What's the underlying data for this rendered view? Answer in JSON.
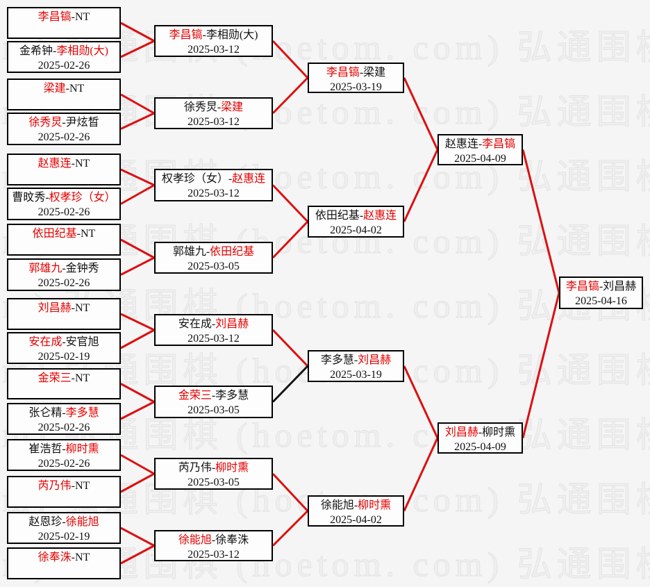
{
  "watermark": {
    "text": "弘通围棋 (hoetom. com)",
    "color": "#e7e7e7"
  },
  "colors": {
    "winner_text": "#e60000",
    "line_red": "#dd0f0f",
    "line_black": "#141414",
    "box_border": "#000000",
    "background": "#f5f5f5"
  },
  "bracket": {
    "separator": "-",
    "rounds": [
      {
        "name": "round-1",
        "boxes": [
          {
            "id": "b1",
            "p1": "李昌镐",
            "p2": "NT",
            "winner": 1,
            "date": ""
          },
          {
            "id": "b2",
            "p1": "金希钟",
            "p2": "李相勋(大)",
            "winner": 2,
            "date": "2025-02-26"
          },
          {
            "id": "b3",
            "p1": "梁建",
            "p2": "NT",
            "winner": 1,
            "date": ""
          },
          {
            "id": "b4",
            "p1": "徐秀炅",
            "p2": "尹炫晳",
            "winner": 1,
            "date": "2025-02-26"
          },
          {
            "id": "b5",
            "p1": "赵惠连",
            "p2": "NT",
            "winner": 1,
            "date": ""
          },
          {
            "id": "b6",
            "p1": "曹旼秀",
            "p2": "权孝珍（女）",
            "winner": 2,
            "date": "2025-02-26"
          },
          {
            "id": "b7",
            "p1": "依田纪基",
            "p2": "NT",
            "winner": 1,
            "date": ""
          },
          {
            "id": "b8",
            "p1": "郭雄九",
            "p2": "金钟秀",
            "winner": 1,
            "date": "2025-02-26"
          },
          {
            "id": "b9",
            "p1": "刘昌赫",
            "p2": "NT",
            "winner": 1,
            "date": ""
          },
          {
            "id": "b10",
            "p1": "安在成",
            "p2": "安官旭",
            "winner": 1,
            "date": "2025-02-19"
          },
          {
            "id": "b11",
            "p1": "金荣三",
            "p2": "NT",
            "winner": 1,
            "date": ""
          },
          {
            "id": "b12",
            "p1": "张仑精",
            "p2": "李多慧",
            "winner": 2,
            "date": "2025-02-26"
          },
          {
            "id": "b13",
            "p1": "崔浩哲",
            "p2": "柳时熏",
            "winner": 2,
            "date": "2025-02-26"
          },
          {
            "id": "b14",
            "p1": "芮乃伟",
            "p2": "NT",
            "winner": 1,
            "date": ""
          },
          {
            "id": "b15",
            "p1": "赵恩珍",
            "p2": "徐能旭",
            "winner": 2,
            "date": "2025-02-19"
          },
          {
            "id": "b16",
            "p1": "徐奉洙",
            "p2": "NT",
            "winner": 1,
            "date": ""
          }
        ]
      },
      {
        "name": "round-2",
        "boxes": [
          {
            "id": "r2b1",
            "p1": "李昌镐",
            "p2": "李相勋(大)",
            "winner": 1,
            "date": "2025-03-12"
          },
          {
            "id": "r2b2",
            "p1": "徐秀炅",
            "p2": "梁建",
            "winner": 2,
            "date": "2025-03-12"
          },
          {
            "id": "r2b3",
            "p1": "权孝珍（女）",
            "p2": "赵惠连",
            "winner": 2,
            "date": "2025-03-12"
          },
          {
            "id": "r2b4",
            "p1": "郭雄九",
            "p2": "依田纪基",
            "winner": 2,
            "date": "2025-03-05"
          },
          {
            "id": "r2b5",
            "p1": "安在成",
            "p2": "刘昌赫",
            "winner": 2,
            "date": "2025-03-12"
          },
          {
            "id": "r2b6",
            "p1": "金荣三",
            "p2": "李多慧",
            "winner": 1,
            "date": "2025-03-05"
          },
          {
            "id": "r2b7",
            "p1": "芮乃伟",
            "p2": "柳时熏",
            "winner": 2,
            "date": "2025-03-05"
          },
          {
            "id": "r2b8",
            "p1": "徐能旭",
            "p2": "徐奉洙",
            "winner": 1,
            "date": "2025-03-12"
          }
        ]
      },
      {
        "name": "round-3",
        "boxes": [
          {
            "id": "r3b1",
            "p1": "李昌镐",
            "p2": "梁建",
            "winner": 1,
            "date": "2025-03-19"
          },
          {
            "id": "r3b2",
            "p1": "依田纪基",
            "p2": "赵惠连",
            "winner": 2,
            "date": "2025-04-02"
          },
          {
            "id": "r3b3",
            "p1": "李多慧",
            "p2": "刘昌赫",
            "winner": 2,
            "date": "2025-03-19"
          },
          {
            "id": "r3b4",
            "p1": "徐能旭",
            "p2": "柳时熏",
            "winner": 2,
            "date": "2025-04-02"
          }
        ]
      },
      {
        "name": "semifinal",
        "boxes": [
          {
            "id": "r4b1",
            "p1": "赵惠连",
            "p2": "李昌镐",
            "winner": 2,
            "date": "2025-04-09"
          },
          {
            "id": "r4b2",
            "p1": "刘昌赫",
            "p2": "柳时熏",
            "winner": 1,
            "date": "2025-04-09"
          }
        ]
      },
      {
        "name": "final",
        "boxes": [
          {
            "id": "f1",
            "p1": "李昌镐",
            "p2": "刘昌赫",
            "winner": 1,
            "date": "2025-04-16"
          }
        ]
      }
    ]
  },
  "connections": [
    {
      "from": "b1",
      "to": "r2b1",
      "color": "red"
    },
    {
      "from": "b2",
      "to": "r2b1",
      "color": "red"
    },
    {
      "from": "b3",
      "to": "r2b2",
      "color": "red"
    },
    {
      "from": "b4",
      "to": "r2b2",
      "color": "red"
    },
    {
      "from": "b5",
      "to": "r2b3",
      "color": "red"
    },
    {
      "from": "b6",
      "to": "r2b3",
      "color": "red"
    },
    {
      "from": "b7",
      "to": "r2b4",
      "color": "red"
    },
    {
      "from": "b8",
      "to": "r2b4",
      "color": "red"
    },
    {
      "from": "b9",
      "to": "r2b5",
      "color": "red"
    },
    {
      "from": "b10",
      "to": "r2b5",
      "color": "red"
    },
    {
      "from": "b11",
      "to": "r2b6",
      "color": "red"
    },
    {
      "from": "b12",
      "to": "r2b6",
      "color": "red"
    },
    {
      "from": "b13",
      "to": "r2b7",
      "color": "red"
    },
    {
      "from": "b14",
      "to": "r2b7",
      "color": "red"
    },
    {
      "from": "b15",
      "to": "r2b8",
      "color": "red"
    },
    {
      "from": "b16",
      "to": "r2b8",
      "color": "red"
    },
    {
      "from": "r2b1",
      "to": "r3b1",
      "color": "red"
    },
    {
      "from": "r2b2",
      "to": "r3b1",
      "color": "red"
    },
    {
      "from": "r2b3",
      "to": "r3b2",
      "color": "red"
    },
    {
      "from": "r2b4",
      "to": "r3b2",
      "color": "red"
    },
    {
      "from": "r2b5",
      "to": "r3b3",
      "color": "red"
    },
    {
      "from": "r2b6",
      "to": "r3b3",
      "color": "black"
    },
    {
      "from": "r2b7",
      "to": "r3b4",
      "color": "red"
    },
    {
      "from": "r2b8",
      "to": "r3b4",
      "color": "red"
    },
    {
      "from": "r3b1",
      "to": "r4b1",
      "color": "red"
    },
    {
      "from": "r3b2",
      "to": "r4b1",
      "color": "red"
    },
    {
      "from": "r3b3",
      "to": "r4b2",
      "color": "red"
    },
    {
      "from": "r3b4",
      "to": "r4b2",
      "color": "red"
    },
    {
      "from": "r4b1",
      "to": "f1",
      "color": "red"
    },
    {
      "from": "r4b2",
      "to": "f1",
      "color": "red"
    }
  ]
}
